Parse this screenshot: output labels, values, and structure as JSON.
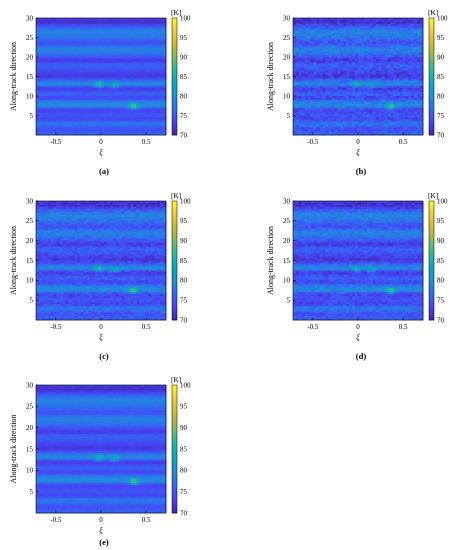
{
  "chart_data": [
    {
      "type": "heatmap",
      "panel_label": "(a)",
      "xlabel": "ξ",
      "ylabel": "Along-track direction",
      "xlim": [
        -0.72,
        0.72
      ],
      "ylim": [
        0,
        30
      ],
      "x_ticks": [
        -0.5,
        0,
        0.5
      ],
      "x_tick_labels": [
        "-0.5",
        "0",
        "0.5"
      ],
      "y_ticks": [
        5,
        10,
        15,
        20,
        25,
        30
      ],
      "y_tick_labels": [
        "5",
        "10",
        "15",
        "20",
        "25",
        "30"
      ],
      "colorbar": {
        "unit": "[K]",
        "min": 70,
        "max": 100,
        "ticks": [
          "70",
          "75",
          "80",
          "85",
          "90",
          "95",
          "100"
        ]
      },
      "grid": false,
      "noise_level": 0.2,
      "stripe_temperature_K": [
        {
          "y": 0,
          "value": 76
        },
        {
          "y": 1.5,
          "value": 74
        },
        {
          "y": 3,
          "value": 78
        },
        {
          "y": 4,
          "value": 73
        },
        {
          "y": 5,
          "value": 75
        },
        {
          "y": 6.5,
          "value": 73
        },
        {
          "y": 7.5,
          "value": 80
        },
        {
          "y": 8.5,
          "value": 78
        },
        {
          "y": 9.5,
          "value": 73
        },
        {
          "y": 10.5,
          "value": 76
        },
        {
          "y": 12,
          "value": 72
        },
        {
          "y": 13,
          "value": 80
        },
        {
          "y": 14,
          "value": 76
        },
        {
          "y": 15,
          "value": 72
        },
        {
          "y": 16.5,
          "value": 74
        },
        {
          "y": 18,
          "value": 76
        },
        {
          "y": 19,
          "value": 72
        },
        {
          "y": 20.5,
          "value": 76
        },
        {
          "y": 22,
          "value": 79
        },
        {
          "y": 23.5,
          "value": 74
        },
        {
          "y": 25,
          "value": 77
        },
        {
          "y": 26.5,
          "value": 79
        },
        {
          "y": 28,
          "value": 74
        },
        {
          "y": 29,
          "value": 71
        },
        {
          "y": 30,
          "value": 73
        }
      ],
      "hot_spots": [
        {
          "x": -0.02,
          "y": 13,
          "value": 87
        },
        {
          "x": 0.15,
          "y": 12.8,
          "value": 85
        },
        {
          "x": 0.36,
          "y": 7.4,
          "value": 89
        }
      ]
    },
    {
      "type": "heatmap",
      "panel_label": "(b)",
      "xlabel": "ξ",
      "ylabel": "Along-track direction",
      "xlim": [
        -0.72,
        0.72
      ],
      "ylim": [
        0,
        30
      ],
      "x_ticks": [
        -0.5,
        0,
        0.5
      ],
      "x_tick_labels": [
        "-0.5",
        "0",
        "0.5"
      ],
      "y_ticks": [
        5,
        10,
        15,
        20,
        25,
        30
      ],
      "y_tick_labels": [
        "5",
        "10",
        "15",
        "20",
        "25",
        "30"
      ],
      "colorbar": {
        "unit": "[K]",
        "min": 70,
        "max": 100,
        "ticks": [
          "70",
          "75",
          "80",
          "85",
          "90",
          "95",
          "100"
        ]
      },
      "grid": false,
      "noise_level": 1.0,
      "stripe_temperature_K": [
        {
          "y": 0,
          "value": 76
        },
        {
          "y": 1.5,
          "value": 74
        },
        {
          "y": 3,
          "value": 78
        },
        {
          "y": 4,
          "value": 73
        },
        {
          "y": 5,
          "value": 75
        },
        {
          "y": 6.5,
          "value": 73
        },
        {
          "y": 7.5,
          "value": 80
        },
        {
          "y": 8.5,
          "value": 78
        },
        {
          "y": 9.5,
          "value": 73
        },
        {
          "y": 10.5,
          "value": 76
        },
        {
          "y": 12,
          "value": 72
        },
        {
          "y": 13,
          "value": 80
        },
        {
          "y": 14,
          "value": 76
        },
        {
          "y": 15,
          "value": 72
        },
        {
          "y": 16.5,
          "value": 74
        },
        {
          "y": 18,
          "value": 76
        },
        {
          "y": 19,
          "value": 72
        },
        {
          "y": 20.5,
          "value": 76
        },
        {
          "y": 22,
          "value": 79
        },
        {
          "y": 23.5,
          "value": 74
        },
        {
          "y": 25,
          "value": 77
        },
        {
          "y": 26.5,
          "value": 79
        },
        {
          "y": 28,
          "value": 74
        },
        {
          "y": 29,
          "value": 71
        },
        {
          "y": 30,
          "value": 73
        }
      ],
      "hot_spots": [
        {
          "x": -0.02,
          "y": 13,
          "value": 86
        },
        {
          "x": 0.15,
          "y": 12.8,
          "value": 84
        },
        {
          "x": 0.36,
          "y": 7.4,
          "value": 88
        }
      ]
    },
    {
      "type": "heatmap",
      "panel_label": "(c)",
      "xlabel": "ξ",
      "ylabel": "Along-track direction",
      "xlim": [
        -0.72,
        0.72
      ],
      "ylim": [
        0,
        30
      ],
      "x_ticks": [
        -0.5,
        0,
        0.5
      ],
      "x_tick_labels": [
        "-0.5",
        "0",
        "0.5"
      ],
      "y_ticks": [
        5,
        10,
        15,
        20,
        25,
        30
      ],
      "y_tick_labels": [
        "5",
        "10",
        "15",
        "20",
        "25",
        "30"
      ],
      "colorbar": {
        "unit": "[K]",
        "min": 70,
        "max": 100,
        "ticks": [
          "70",
          "75",
          "80",
          "85",
          "90",
          "95",
          "100"
        ]
      },
      "grid": false,
      "noise_level": 0.8,
      "stripe_temperature_K": [
        {
          "y": 0,
          "value": 76
        },
        {
          "y": 1.5,
          "value": 74
        },
        {
          "y": 3,
          "value": 78
        },
        {
          "y": 4,
          "value": 73
        },
        {
          "y": 5,
          "value": 75
        },
        {
          "y": 6.5,
          "value": 73
        },
        {
          "y": 7.5,
          "value": 80
        },
        {
          "y": 8.5,
          "value": 78
        },
        {
          "y": 9.5,
          "value": 73
        },
        {
          "y": 10.5,
          "value": 76
        },
        {
          "y": 12,
          "value": 72
        },
        {
          "y": 13,
          "value": 80
        },
        {
          "y": 14,
          "value": 76
        },
        {
          "y": 15,
          "value": 72
        },
        {
          "y": 16.5,
          "value": 74
        },
        {
          "y": 18,
          "value": 76
        },
        {
          "y": 19,
          "value": 72
        },
        {
          "y": 20.5,
          "value": 76
        },
        {
          "y": 22,
          "value": 79
        },
        {
          "y": 23.5,
          "value": 74
        },
        {
          "y": 25,
          "value": 77
        },
        {
          "y": 26.5,
          "value": 79
        },
        {
          "y": 28,
          "value": 74
        },
        {
          "y": 29,
          "value": 71
        },
        {
          "y": 30,
          "value": 73
        }
      ],
      "hot_spots": [
        {
          "x": -0.02,
          "y": 13,
          "value": 86
        },
        {
          "x": 0.15,
          "y": 12.8,
          "value": 84
        },
        {
          "x": 0.36,
          "y": 7.4,
          "value": 88
        }
      ]
    },
    {
      "type": "heatmap",
      "panel_label": "(d)",
      "xlabel": "ξ",
      "ylabel": "Along-track direction",
      "xlim": [
        -0.72,
        0.72
      ],
      "ylim": [
        0,
        30
      ],
      "x_ticks": [
        -0.5,
        0,
        0.5
      ],
      "x_tick_labels": [
        "-0.5",
        "0",
        "0.5"
      ],
      "y_ticks": [
        5,
        10,
        15,
        20,
        25,
        30
      ],
      "y_tick_labels": [
        "5",
        "10",
        "15",
        "20",
        "25",
        "30"
      ],
      "colorbar": {
        "unit": "[K]",
        "min": 70,
        "max": 100,
        "ticks": [
          "70",
          "75",
          "80",
          "85",
          "90",
          "95",
          "100"
        ]
      },
      "grid": false,
      "noise_level": 0.8,
      "stripe_temperature_K": [
        {
          "y": 0,
          "value": 76
        },
        {
          "y": 1.5,
          "value": 74
        },
        {
          "y": 3,
          "value": 78
        },
        {
          "y": 4,
          "value": 73
        },
        {
          "y": 5,
          "value": 75
        },
        {
          "y": 6.5,
          "value": 73
        },
        {
          "y": 7.5,
          "value": 80
        },
        {
          "y": 8.5,
          "value": 78
        },
        {
          "y": 9.5,
          "value": 73
        },
        {
          "y": 10.5,
          "value": 76
        },
        {
          "y": 12,
          "value": 72
        },
        {
          "y": 13,
          "value": 80
        },
        {
          "y": 14,
          "value": 76
        },
        {
          "y": 15,
          "value": 72
        },
        {
          "y": 16.5,
          "value": 74
        },
        {
          "y": 18,
          "value": 76
        },
        {
          "y": 19,
          "value": 72
        },
        {
          "y": 20.5,
          "value": 76
        },
        {
          "y": 22,
          "value": 79
        },
        {
          "y": 23.5,
          "value": 74
        },
        {
          "y": 25,
          "value": 77
        },
        {
          "y": 26.5,
          "value": 79
        },
        {
          "y": 28,
          "value": 74
        },
        {
          "y": 29,
          "value": 71
        },
        {
          "y": 30,
          "value": 73
        }
      ],
      "hot_spots": [
        {
          "x": -0.02,
          "y": 13,
          "value": 86
        },
        {
          "x": 0.15,
          "y": 12.8,
          "value": 84
        },
        {
          "x": 0.36,
          "y": 7.4,
          "value": 88
        }
      ]
    },
    {
      "type": "heatmap",
      "panel_label": "(e)",
      "xlabel": "ξ",
      "ylabel": "Along-track direction",
      "xlim": [
        -0.72,
        0.72
      ],
      "ylim": [
        0,
        30
      ],
      "x_ticks": [
        -0.5,
        0,
        0.5
      ],
      "x_tick_labels": [
        "-0.5",
        "0",
        "0.5"
      ],
      "y_ticks": [
        5,
        10,
        15,
        20,
        25,
        30
      ],
      "y_tick_labels": [
        "5",
        "10",
        "15",
        "20",
        "25",
        "30"
      ],
      "colorbar": {
        "unit": "[K]",
        "min": 70,
        "max": 100,
        "ticks": [
          "70",
          "75",
          "80",
          "85",
          "90",
          "95",
          "100"
        ]
      },
      "grid": false,
      "noise_level": 0.2,
      "stripe_temperature_K": [
        {
          "y": 0,
          "value": 76
        },
        {
          "y": 1.5,
          "value": 74
        },
        {
          "y": 3,
          "value": 78
        },
        {
          "y": 4,
          "value": 73
        },
        {
          "y": 5,
          "value": 75
        },
        {
          "y": 6.5,
          "value": 73
        },
        {
          "y": 7.5,
          "value": 80
        },
        {
          "y": 8.5,
          "value": 78
        },
        {
          "y": 9.5,
          "value": 73
        },
        {
          "y": 10.5,
          "value": 76
        },
        {
          "y": 12,
          "value": 72
        },
        {
          "y": 13,
          "value": 80
        },
        {
          "y": 14,
          "value": 76
        },
        {
          "y": 15,
          "value": 72
        },
        {
          "y": 16.5,
          "value": 74
        },
        {
          "y": 18,
          "value": 76
        },
        {
          "y": 19,
          "value": 72
        },
        {
          "y": 20.5,
          "value": 76
        },
        {
          "y": 22,
          "value": 79
        },
        {
          "y": 23.5,
          "value": 74
        },
        {
          "y": 25,
          "value": 77
        },
        {
          "y": 26.5,
          "value": 79
        },
        {
          "y": 28,
          "value": 74
        },
        {
          "y": 29,
          "value": 71
        },
        {
          "y": 30,
          "value": 73
        }
      ],
      "hot_spots": [
        {
          "x": -0.02,
          "y": 13,
          "value": 86
        },
        {
          "x": 0.15,
          "y": 12.8,
          "value": 84
        },
        {
          "x": 0.36,
          "y": 7.4,
          "value": 89
        }
      ]
    }
  ],
  "colormap": [
    "#3e26a8",
    "#4743f5",
    "#2f6ff0",
    "#1e91d8",
    "#07aac1",
    "#2ab99d",
    "#80bd58",
    "#c9bc2e",
    "#f6c83a",
    "#f9fb15"
  ]
}
